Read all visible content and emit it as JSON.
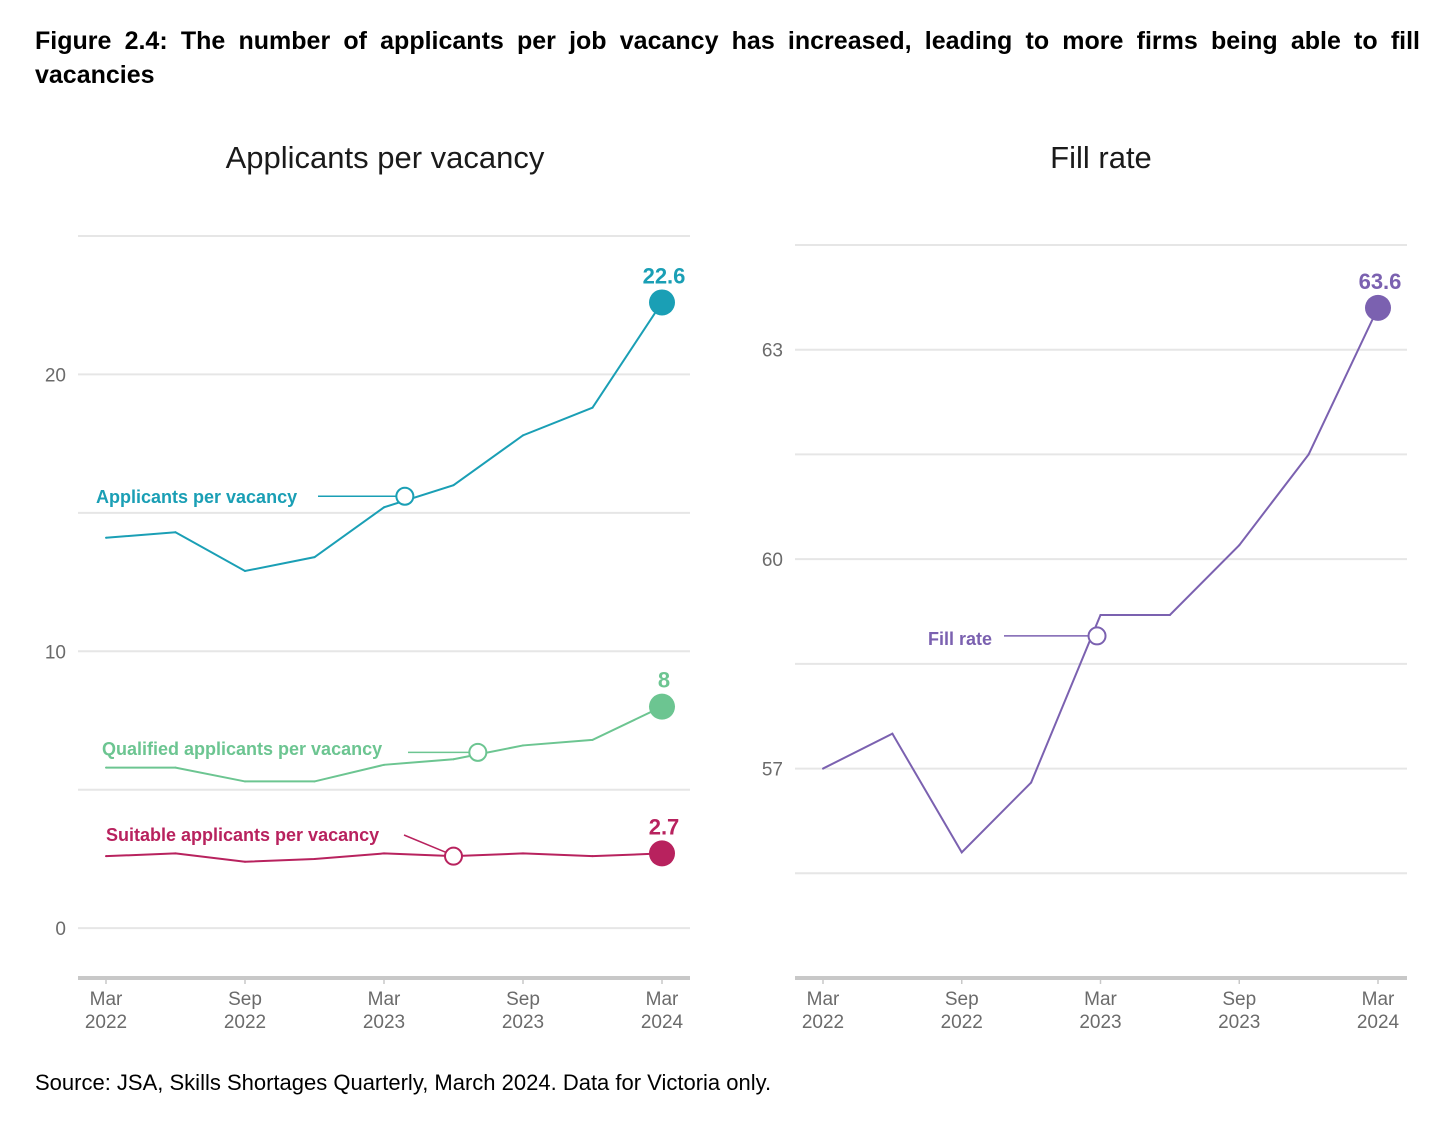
{
  "figure_title": "Figure 2.4: The number of applicants per job vacancy has increased, leading to more firms being able to fill vacancies",
  "source": "Source: JSA, Skills Shortages Quarterly, March 2024. Data for Victoria only.",
  "chart_data": [
    {
      "type": "line",
      "title": "Applicants per vacancy",
      "xlabel": "",
      "ylabel": "",
      "x": [
        "Mar 2022",
        "Jun 2022",
        "Sep 2022",
        "Dec 2022",
        "Mar 2023",
        "Jun 2023",
        "Sep 2023",
        "Dec 2023",
        "Mar 2024"
      ],
      "x_tick_labels": [
        [
          "Mar",
          "2022"
        ],
        [
          "Sep",
          "2022"
        ],
        [
          "Mar",
          "2023"
        ],
        [
          "Sep",
          "2023"
        ],
        [
          "Mar",
          "2024"
        ]
      ],
      "x_tick_indices": [
        0,
        2,
        4,
        6,
        8
      ],
      "ylim": [
        -1.8,
        25
      ],
      "y_ticks": [
        0,
        10,
        20
      ],
      "y_gridlines": [
        0,
        5,
        10,
        15,
        20,
        25
      ],
      "grid": true,
      "legend": "none (direct labels)",
      "series": [
        {
          "name": "Applicants per vacancy",
          "color": "#1a9fb5",
          "values": [
            14.1,
            14.3,
            12.9,
            13.4,
            15.2,
            16.0,
            17.8,
            18.8,
            22.6
          ],
          "end_label": "22.6",
          "label_marker_x_index": 4.3,
          "label_marker_value": 15.6
        },
        {
          "name": "Qualified applicants per vacancy",
          "color": "#6cc591",
          "values": [
            5.8,
            5.8,
            5.3,
            5.3,
            5.9,
            6.1,
            6.6,
            6.8,
            8.0
          ],
          "end_label": "8",
          "label_marker_x_index": 5.35,
          "label_marker_value": 6.35
        },
        {
          "name": "Suitable applicants per vacancy",
          "color": "#b8225e",
          "values": [
            2.6,
            2.7,
            2.4,
            2.5,
            2.7,
            2.6,
            2.7,
            2.6,
            2.7
          ],
          "end_label": "2.7",
          "label_marker_x_index": 5.0,
          "label_marker_value": 2.6
        }
      ]
    },
    {
      "type": "line",
      "title": "Fill rate",
      "xlabel": "",
      "ylabel": "",
      "x": [
        "Mar 2022",
        "Jun 2022",
        "Sep 2022",
        "Dec 2022",
        "Mar 2023",
        "Jun 2023",
        "Sep 2023",
        "Dec 2023",
        "Mar 2024"
      ],
      "x_tick_labels": [
        [
          "Mar",
          "2022"
        ],
        [
          "Sep",
          "2022"
        ],
        [
          "Mar",
          "2023"
        ],
        [
          "Sep",
          "2023"
        ],
        [
          "Mar",
          "2024"
        ]
      ],
      "x_tick_indices": [
        0,
        2,
        4,
        6,
        8
      ],
      "ylim": [
        54.0,
        64.5
      ],
      "y_ticks": [
        57,
        60,
        63
      ],
      "y_gridlines": [
        55.5,
        57,
        58.5,
        60,
        61.5,
        63,
        64.5
      ],
      "grid": true,
      "legend": "none (direct labels)",
      "series": [
        {
          "name": "Fill rate",
          "color": "#7b61b0",
          "values": [
            57.0,
            57.5,
            55.8,
            56.8,
            59.2,
            59.2,
            60.2,
            61.5,
            63.6
          ],
          "end_label": "63.6",
          "label_marker_x_index": 3.95,
          "label_marker_value": 58.9
        }
      ]
    }
  ]
}
